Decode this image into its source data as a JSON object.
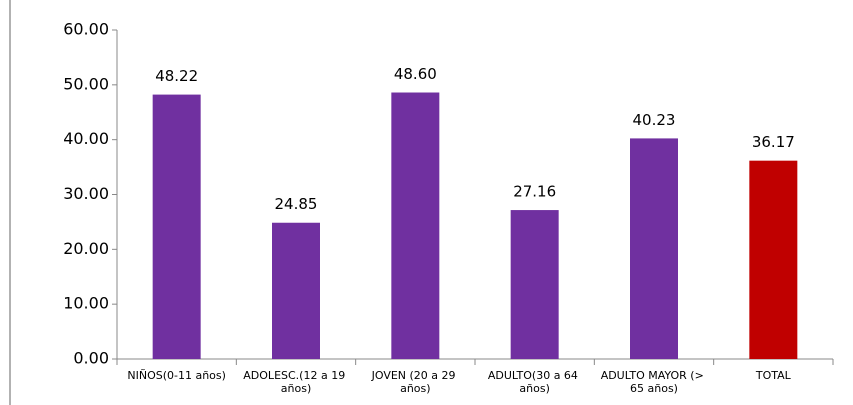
{
  "chart_data": {
    "type": "bar",
    "categories": [
      "NIÑOS(0-11 años)",
      "ADOLESC.(12 a 19 años)",
      "JOVEN (20 a 29 años)",
      "ADULTO(30 a 64 años)",
      "ADULTO MAYOR (> 65 años)",
      "TOTAL"
    ],
    "values": [
      48.22,
      24.85,
      48.6,
      27.16,
      40.23,
      36.17
    ],
    "value_labels": [
      "48.22",
      "24.85",
      "48.60",
      "27.16",
      "40.23",
      "36.17"
    ],
    "colors": [
      "#7030a0",
      "#7030a0",
      "#7030a0",
      "#7030a0",
      "#7030a0",
      "#c00000"
    ],
    "ylim": [
      0,
      60
    ],
    "yticks": [
      {
        "value": 0,
        "label": "0.00"
      },
      {
        "value": 10,
        "label": "10.00"
      },
      {
        "value": 20,
        "label": "20.00"
      },
      {
        "value": 30,
        "label": "30.00"
      },
      {
        "value": 40,
        "label": "40.00"
      },
      {
        "value": 50,
        "label": "50.00"
      },
      {
        "value": 60,
        "label": "60.00"
      }
    ],
    "grid": false
  }
}
